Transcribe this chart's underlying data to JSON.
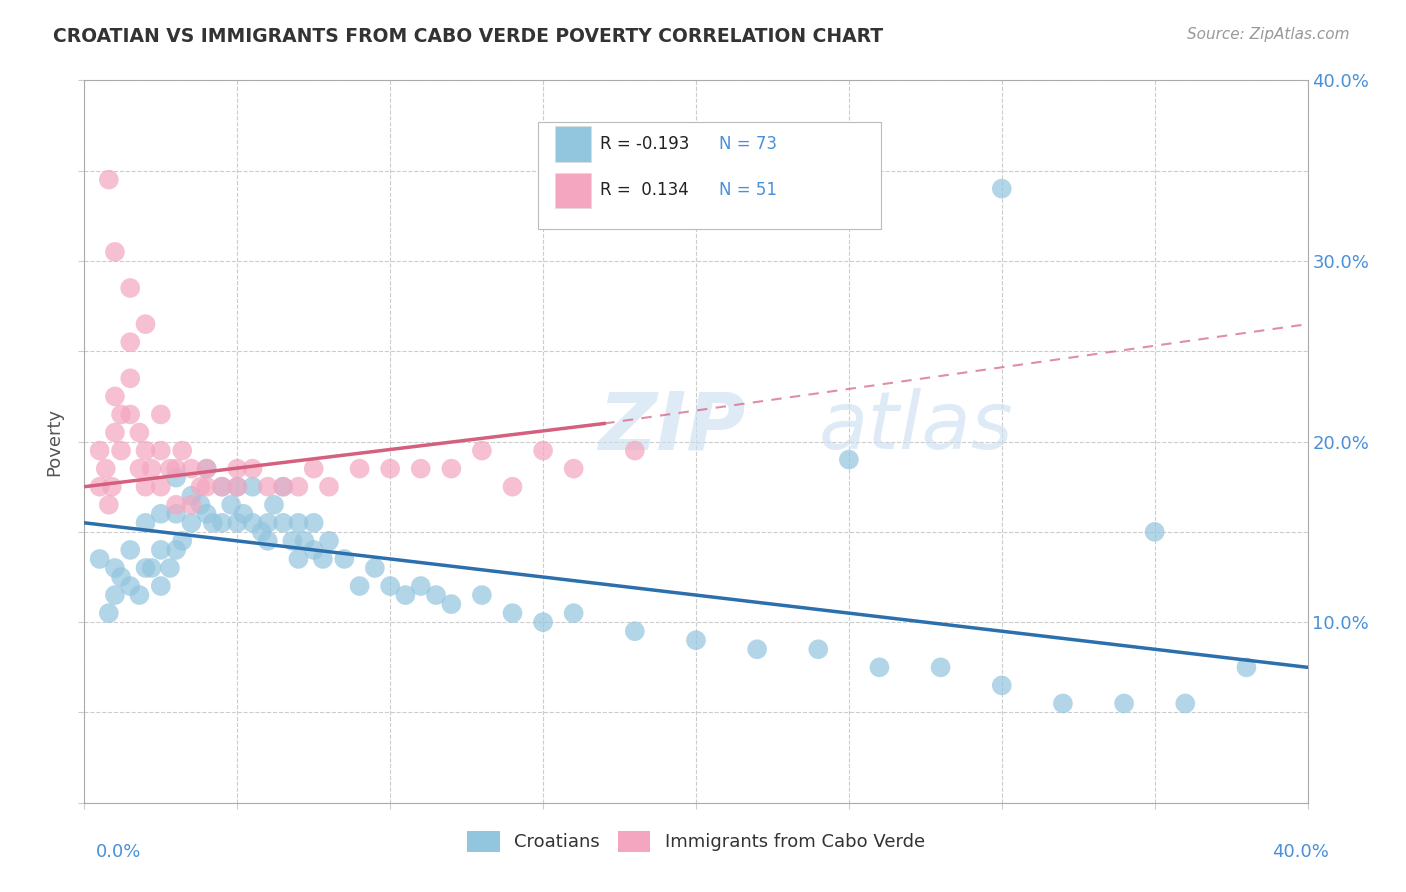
{
  "title": "CROATIAN VS IMMIGRANTS FROM CABO VERDE POVERTY CORRELATION CHART",
  "source": "Source: ZipAtlas.com",
  "ylabel": "Poverty",
  "legend_label1": "Croatians",
  "legend_label2": "Immigrants from Cabo Verde",
  "r1": "-0.193",
  "n1": "73",
  "r2": "0.134",
  "n2": "51",
  "blue_color": "#92c5de",
  "pink_color": "#f4a6c0",
  "blue_line_color": "#2c6fad",
  "pink_line_color": "#d45f7e",
  "watermark": "ZIPatlas",
  "xlim": [
    0.0,
    0.4
  ],
  "ylim": [
    0.0,
    0.4
  ],
  "blue_scatter_x": [
    0.005,
    0.008,
    0.01,
    0.01,
    0.012,
    0.015,
    0.015,
    0.018,
    0.02,
    0.02,
    0.022,
    0.025,
    0.025,
    0.025,
    0.028,
    0.03,
    0.03,
    0.03,
    0.032,
    0.035,
    0.035,
    0.038,
    0.04,
    0.04,
    0.042,
    0.045,
    0.045,
    0.048,
    0.05,
    0.05,
    0.052,
    0.055,
    0.055,
    0.058,
    0.06,
    0.06,
    0.062,
    0.065,
    0.065,
    0.068,
    0.07,
    0.07,
    0.072,
    0.075,
    0.075,
    0.078,
    0.08,
    0.085,
    0.09,
    0.095,
    0.1,
    0.105,
    0.11,
    0.115,
    0.12,
    0.13,
    0.14,
    0.15,
    0.16,
    0.18,
    0.2,
    0.22,
    0.24,
    0.26,
    0.28,
    0.3,
    0.32,
    0.34,
    0.36,
    0.38,
    0.25,
    0.3,
    0.35
  ],
  "blue_scatter_y": [
    0.135,
    0.105,
    0.13,
    0.115,
    0.125,
    0.14,
    0.12,
    0.115,
    0.13,
    0.155,
    0.13,
    0.16,
    0.14,
    0.12,
    0.13,
    0.18,
    0.16,
    0.14,
    0.145,
    0.17,
    0.155,
    0.165,
    0.185,
    0.16,
    0.155,
    0.175,
    0.155,
    0.165,
    0.155,
    0.175,
    0.16,
    0.155,
    0.175,
    0.15,
    0.155,
    0.145,
    0.165,
    0.155,
    0.175,
    0.145,
    0.155,
    0.135,
    0.145,
    0.14,
    0.155,
    0.135,
    0.145,
    0.135,
    0.12,
    0.13,
    0.12,
    0.115,
    0.12,
    0.115,
    0.11,
    0.115,
    0.105,
    0.1,
    0.105,
    0.095,
    0.09,
    0.085,
    0.085,
    0.075,
    0.075,
    0.065,
    0.055,
    0.055,
    0.055,
    0.075,
    0.19,
    0.34,
    0.15
  ],
  "pink_scatter_x": [
    0.005,
    0.005,
    0.007,
    0.008,
    0.009,
    0.01,
    0.01,
    0.012,
    0.012,
    0.015,
    0.015,
    0.015,
    0.018,
    0.018,
    0.02,
    0.02,
    0.022,
    0.025,
    0.025,
    0.025,
    0.028,
    0.03,
    0.03,
    0.032,
    0.035,
    0.035,
    0.038,
    0.04,
    0.04,
    0.045,
    0.05,
    0.05,
    0.055,
    0.06,
    0.065,
    0.07,
    0.075,
    0.08,
    0.09,
    0.1,
    0.11,
    0.12,
    0.13,
    0.14,
    0.15,
    0.16,
    0.18,
    0.008,
    0.01,
    0.015,
    0.02
  ],
  "pink_scatter_y": [
    0.195,
    0.175,
    0.185,
    0.165,
    0.175,
    0.225,
    0.205,
    0.215,
    0.195,
    0.255,
    0.235,
    0.215,
    0.205,
    0.185,
    0.195,
    0.175,
    0.185,
    0.195,
    0.175,
    0.215,
    0.185,
    0.185,
    0.165,
    0.195,
    0.185,
    0.165,
    0.175,
    0.185,
    0.175,
    0.175,
    0.185,
    0.175,
    0.185,
    0.175,
    0.175,
    0.175,
    0.185,
    0.175,
    0.185,
    0.185,
    0.185,
    0.185,
    0.195,
    0.175,
    0.195,
    0.185,
    0.195,
    0.345,
    0.305,
    0.285,
    0.265
  ],
  "background_color": "#ffffff",
  "grid_color": "#cccccc",
  "ytick_labels": [
    "10.0%",
    "20.0%",
    "30.0%",
    "40.0%"
  ],
  "ytick_vals": [
    0.1,
    0.2,
    0.3,
    0.4
  ]
}
